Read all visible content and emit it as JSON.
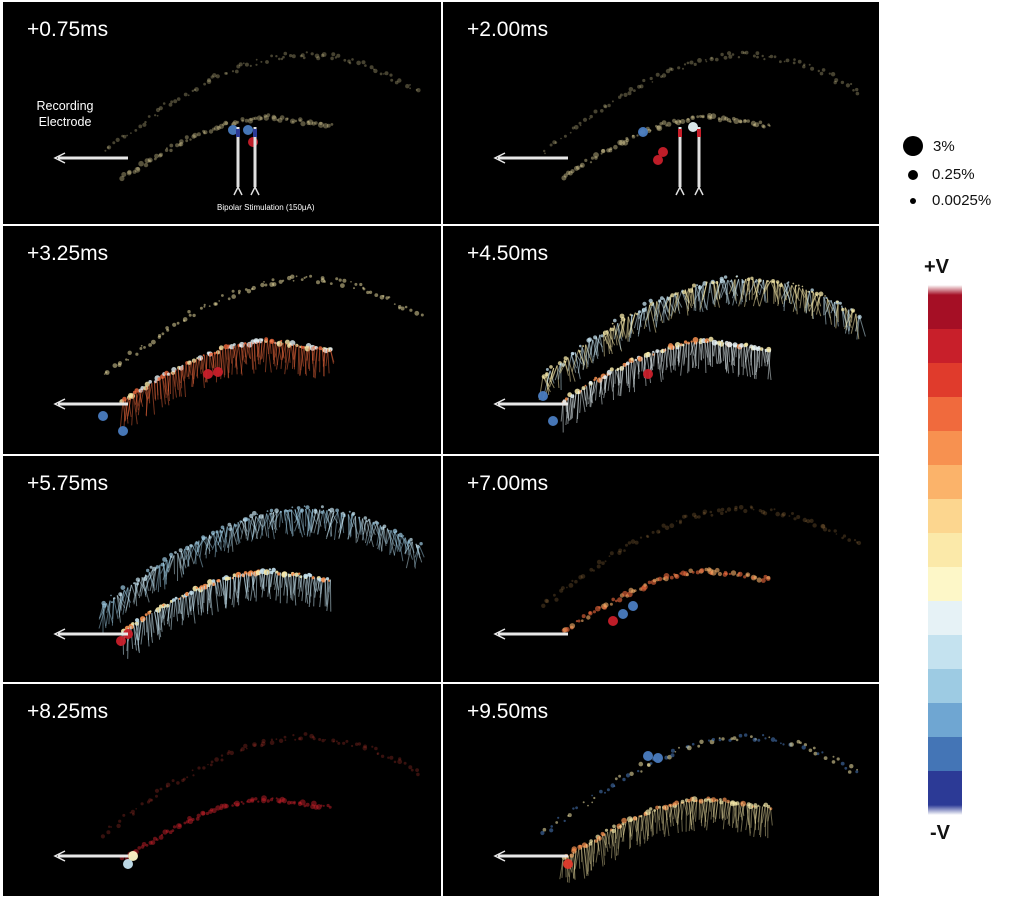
{
  "panels": [
    {
      "time": "+0.75ms",
      "state": "early"
    },
    {
      "time": "+2.00ms",
      "state": "early2"
    },
    {
      "time": "+3.25ms",
      "state": "spread"
    },
    {
      "time": "+4.50ms",
      "state": "full"
    },
    {
      "time": "+5.75ms",
      "state": "lightblue"
    },
    {
      "time": "+7.00ms",
      "state": "fade"
    },
    {
      "time": "+8.25ms",
      "state": "dim"
    },
    {
      "time": "+9.50ms",
      "state": "late"
    }
  ],
  "annotations": {
    "recording_electrode": "Recording\nElectrode",
    "stimulation": "Bipolar Stimulation (150μA)"
  },
  "size_legend": [
    {
      "label": "3%"
    },
    {
      "label": "0.25%"
    },
    {
      "label": "0.0025%"
    }
  ],
  "colorbar": {
    "top_label": "+V",
    "bottom_label": "-V",
    "colors": [
      "#a50f25",
      "#c81f2a",
      "#e03b2c",
      "#f06a3d",
      "#f79150",
      "#fbb36a",
      "#fcd68f",
      "#fbe9a9",
      "#fdf7c8",
      "#e6f2f6",
      "#c4e2ef",
      "#9dcbe3",
      "#6fa6d2",
      "#4475b6",
      "#2c3a96"
    ]
  }
}
